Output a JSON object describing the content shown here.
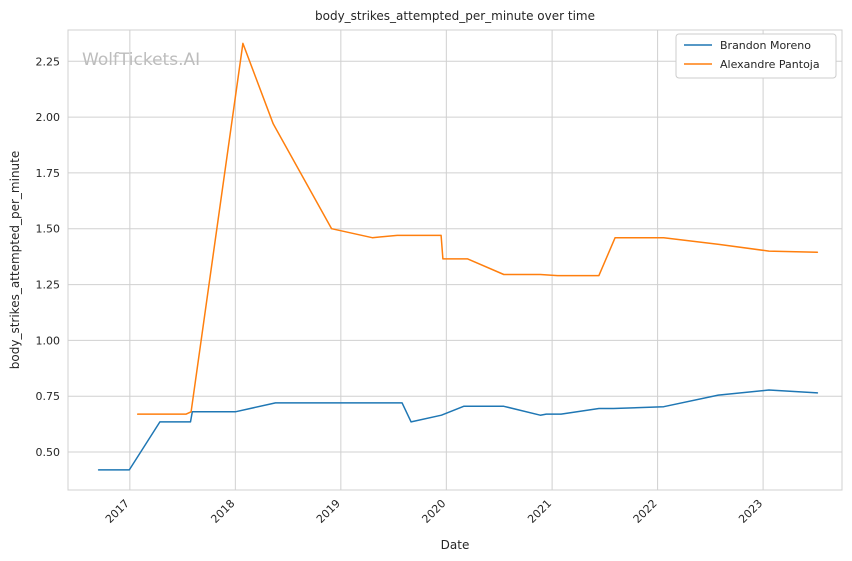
{
  "chart_data": {
    "type": "line",
    "title": "body_strikes_attempted_per_minute over time",
    "xlabel": "Date",
    "ylabel": "body_strikes_attempted_per_minute",
    "watermark": "WolfTickets.AI",
    "xlim": [
      "2016-06-01",
      "2023-10-01"
    ],
    "ylim": [
      0.33,
      2.39
    ],
    "x_ticks": [
      "2017-01-01",
      "2018-01-01",
      "2019-01-01",
      "2020-01-01",
      "2021-01-01",
      "2022-01-01",
      "2023-01-01"
    ],
    "x_tick_labels": [
      "2017",
      "2018",
      "2019",
      "2020",
      "2021",
      "2022",
      "2023"
    ],
    "y_ticks": [
      0.5,
      0.75,
      1.0,
      1.25,
      1.5,
      1.75,
      2.0,
      2.25
    ],
    "y_tick_labels": [
      "0.50",
      "0.75",
      "1.00",
      "1.25",
      "1.50",
      "1.75",
      "2.00",
      "2.25"
    ],
    "grid": true,
    "legend_position": "top-right",
    "series": [
      {
        "name": "Brandon Moreno",
        "color": "#1f77b4",
        "x": [
          "2016-09-15",
          "2016-12-30",
          "2017-04-15",
          "2017-07-30",
          "2017-08-05",
          "2018-01-01",
          "2018-05-20",
          "2019-05-01",
          "2019-08-01",
          "2019-09-01",
          "2019-12-15",
          "2020-03-01",
          "2020-07-18",
          "2020-11-21",
          "2020-12-12",
          "2021-02-01",
          "2021-06-12",
          "2021-08-01",
          "2022-01-22",
          "2022-07-30",
          "2023-01-21",
          "2023-07-08"
        ],
        "y": [
          0.42,
          0.42,
          0.635,
          0.635,
          0.68,
          0.68,
          0.72,
          0.72,
          0.72,
          0.635,
          0.665,
          0.705,
          0.705,
          0.665,
          0.67,
          0.67,
          0.695,
          0.695,
          0.703,
          0.755,
          0.778,
          0.765
        ]
      },
      {
        "name": "Alexandre Pantoja",
        "color": "#ff7f0e",
        "x": [
          "2017-01-28",
          "2017-05-13",
          "2017-07-15",
          "2017-08-01",
          "2018-01-27",
          "2018-05-12",
          "2018-11-30",
          "2019-04-20",
          "2019-07-15",
          "2019-10-20",
          "2019-12-14",
          "2019-12-20",
          "2020-03-15",
          "2020-07-18",
          "2020-11-21",
          "2021-01-20",
          "2021-06-12",
          "2021-08-07",
          "2022-01-22",
          "2022-08-01",
          "2023-01-21",
          "2023-07-08"
        ],
        "y": [
          0.67,
          0.67,
          0.67,
          0.68,
          2.33,
          1.97,
          1.5,
          1.46,
          1.47,
          1.47,
          1.47,
          1.365,
          1.365,
          1.295,
          1.295,
          1.29,
          1.29,
          1.46,
          1.46,
          1.43,
          1.4,
          1.395
        ]
      }
    ]
  }
}
